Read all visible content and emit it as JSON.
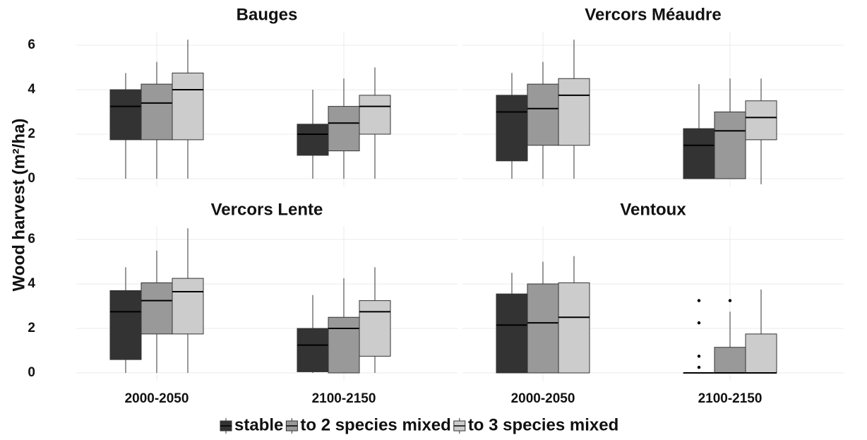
{
  "y_label": "Wood harvest (m²/ha)",
  "legend": [
    {
      "name": "stable",
      "color": "#333333"
    },
    {
      "name": "to 2 species mixed",
      "color": "#999999"
    },
    {
      "name": "to 3 species mixed",
      "color": "#cccccc"
    }
  ],
  "chart_data": [
    {
      "type": "box",
      "title": "Bauges",
      "ylim": [
        -0.35,
        6.6
      ],
      "yticks": [
        0,
        2,
        4,
        6
      ],
      "grid": true,
      "series": [
        {
          "values": [
            {
              "min": 0,
              "q1": 1.75,
              "median": 3.25,
              "q3": 4.0,
              "max": 4.75
            },
            {
              "min": 0,
              "q1": 1.05,
              "median": 2.0,
              "q3": 2.45,
              "max": 4.0
            }
          ]
        },
        {
          "values": [
            {
              "min": 0,
              "q1": 1.75,
              "median": 3.4,
              "q3": 4.25,
              "max": 5.25
            },
            {
              "min": 0,
              "q1": 1.25,
              "median": 2.5,
              "q3": 3.25,
              "max": 4.5
            }
          ]
        },
        {
          "values": [
            {
              "min": 0,
              "q1": 1.75,
              "median": 4.0,
              "q3": 4.75,
              "max": 6.25
            },
            {
              "min": 0,
              "q1": 2.0,
              "median": 3.25,
              "q3": 3.75,
              "max": 5.0
            }
          ]
        }
      ]
    },
    {
      "type": "box",
      "title": "Vercors Méaudre",
      "ylim": [
        -0.35,
        6.6
      ],
      "yticks": [
        0,
        2,
        4,
        6
      ],
      "grid": true,
      "series": [
        {
          "values": [
            {
              "min": 0,
              "q1": 0.8,
              "median": 3.0,
              "q3": 3.75,
              "max": 4.75
            },
            {
              "min": 0,
              "q1": 0,
              "median": 1.5,
              "q3": 2.25,
              "max": 4.25
            }
          ]
        },
        {
          "values": [
            {
              "min": 0,
              "q1": 1.5,
              "median": 3.15,
              "q3": 4.25,
              "max": 5.25
            },
            {
              "min": 0,
              "q1": 0,
              "median": 2.15,
              "q3": 3.0,
              "max": 4.5
            }
          ]
        },
        {
          "values": [
            {
              "min": 0,
              "q1": 1.5,
              "median": 3.75,
              "q3": 4.5,
              "max": 6.25
            },
            {
              "min": -0.25,
              "q1": 1.75,
              "median": 2.75,
              "q3": 3.5,
              "max": 4.5
            }
          ]
        }
      ]
    },
    {
      "type": "box",
      "title": "Vercors Lente",
      "categories": [
        "2000-2050",
        "2100-2150"
      ],
      "ylim": [
        -0.35,
        6.6
      ],
      "yticks": [
        0,
        2,
        4,
        6
      ],
      "grid": true,
      "series": [
        {
          "values": [
            {
              "min": 0,
              "q1": 0.6,
              "median": 2.75,
              "q3": 3.7,
              "max": 4.75
            },
            {
              "min": 0,
              "q1": 0.05,
              "median": 1.25,
              "q3": 2.0,
              "max": 3.5
            }
          ]
        },
        {
          "values": [
            {
              "min": 0,
              "q1": 1.75,
              "median": 3.25,
              "q3": 4.05,
              "max": 5.5
            },
            {
              "min": 0,
              "q1": 0,
              "median": 2.0,
              "q3": 2.5,
              "max": 4.25
            }
          ]
        },
        {
          "values": [
            {
              "min": 0,
              "q1": 1.75,
              "median": 3.65,
              "q3": 4.25,
              "max": 6.5
            },
            {
              "min": 0,
              "q1": 0.75,
              "median": 2.75,
              "q3": 3.25,
              "max": 4.75
            }
          ]
        }
      ]
    },
    {
      "type": "box",
      "title": "Ventoux",
      "categories": [
        "2000-2050",
        "2100-2150"
      ],
      "ylim": [
        -0.35,
        6.6
      ],
      "yticks": [
        0,
        2,
        4,
        6
      ],
      "grid": true,
      "series": [
        {
          "values": [
            {
              "min": 0,
              "q1": 0,
              "median": 2.15,
              "q3": 3.55,
              "max": 4.5
            },
            {
              "min": 0,
              "q1": 0,
              "median": 0,
              "q3": 0,
              "max": 0,
              "outliers": [
                3.25,
                2.25,
                0.75,
                0.25
              ]
            }
          ]
        },
        {
          "values": [
            {
              "min": 0,
              "q1": 0,
              "median": 2.25,
              "q3": 4.0,
              "max": 5.0
            },
            {
              "min": 0,
              "q1": 0,
              "median": 0,
              "q3": 1.15,
              "max": 2.75,
              "outliers": [
                3.25
              ]
            }
          ]
        },
        {
          "values": [
            {
              "min": 0,
              "q1": 0,
              "median": 2.5,
              "q3": 4.05,
              "max": 5.25
            },
            {
              "min": 0,
              "q1": 0,
              "median": 0,
              "q3": 1.75,
              "max": 3.75
            }
          ]
        }
      ]
    }
  ]
}
